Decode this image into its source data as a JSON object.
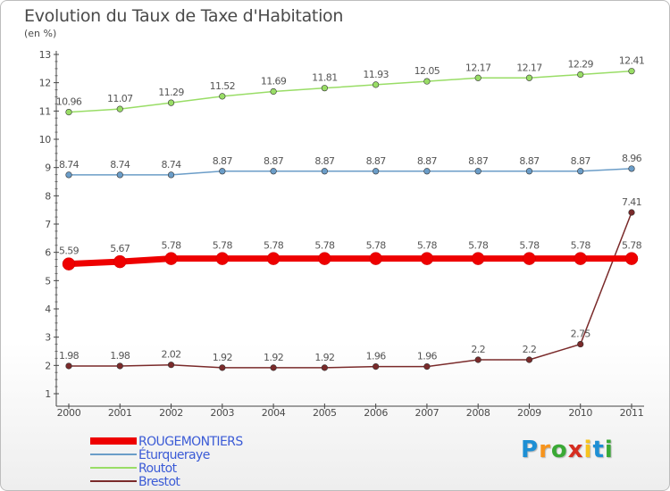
{
  "title": "Evolution du Taux de Taxe d'Habitation",
  "unit": "(en %)",
  "logo": {
    "letters": [
      "P",
      "r",
      "o",
      "x",
      "i",
      "t",
      "i"
    ],
    "colors": [
      "#1e8fd4",
      "#f7941d",
      "#3aa935",
      "#d62d20",
      "#f7c31d",
      "#1e8fd4",
      "#3aa935"
    ]
  },
  "chart_data": {
    "type": "line",
    "title": "Evolution du Taux de Taxe d'Habitation",
    "ylabel": "(en %)",
    "xlabel": "",
    "x": [
      "2000",
      "2001",
      "2002",
      "2003",
      "2004",
      "2005",
      "2006",
      "2007",
      "2008",
      "2009",
      "2010",
      "2011"
    ],
    "ylim": [
      1,
      13
    ],
    "yticks": [
      "1",
      "2",
      "3",
      "4",
      "5",
      "6",
      "7",
      "8",
      "9",
      "10",
      "11",
      "12",
      "13"
    ],
    "grid": false,
    "legend_position": "bottom-left",
    "series": [
      {
        "name": "ROUGEMONTIERS",
        "color": "#ee0000",
        "emphasis": true,
        "values": [
          5.59,
          5.67,
          5.78,
          5.78,
          5.78,
          5.78,
          5.78,
          5.78,
          5.78,
          5.78,
          5.78,
          5.78
        ],
        "labels": [
          "5.59",
          "5.67",
          "5.78",
          "5.78",
          "5.78",
          "5.78",
          "5.78",
          "5.78",
          "5.78",
          "5.78",
          "5.78",
          "5.78"
        ],
        "legend_color": "#3b5bd6"
      },
      {
        "name": "Éturqueraye",
        "color": "#6b9dc8",
        "emphasis": false,
        "values": [
          8.74,
          8.74,
          8.74,
          8.87,
          8.87,
          8.87,
          8.87,
          8.87,
          8.87,
          8.87,
          8.87,
          8.96
        ],
        "labels": [
          "8.74",
          "8.74",
          "8.74",
          "8.87",
          "8.87",
          "8.87",
          "8.87",
          "8.87",
          "8.87",
          "8.87",
          "8.87",
          "8.96"
        ],
        "legend_color": "#3b5bd6"
      },
      {
        "name": "Routot",
        "color": "#99dd66",
        "emphasis": false,
        "values": [
          10.96,
          11.07,
          11.29,
          11.52,
          11.69,
          11.81,
          11.93,
          12.05,
          12.17,
          12.17,
          12.29,
          12.41
        ],
        "labels": [
          "10.96",
          "11.07",
          "11.29",
          "11.52",
          "11.69",
          "11.81",
          "11.93",
          "12.05",
          "12.17",
          "12.17",
          "12.29",
          "12.41"
        ],
        "legend_color": "#3b5bd6"
      },
      {
        "name": "Brestot",
        "color": "#7a2a2a",
        "emphasis": false,
        "values": [
          1.98,
          1.98,
          2.02,
          1.92,
          1.92,
          1.92,
          1.96,
          1.96,
          2.2,
          2.2,
          2.75,
          7.41
        ],
        "labels": [
          "1.98",
          "1.98",
          "2.02",
          "1.92",
          "1.92",
          "1.92",
          "1.96",
          "1.96",
          "2.2",
          "2.2",
          "2.75",
          "7.41"
        ],
        "legend_color": "#3b5bd6"
      }
    ]
  }
}
